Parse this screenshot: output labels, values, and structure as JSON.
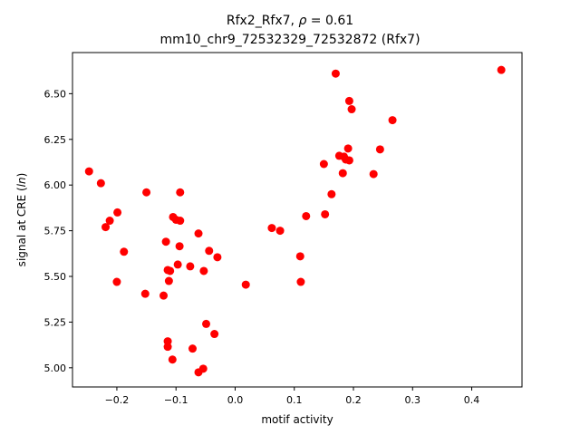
{
  "chart_data": {
    "type": "scatter",
    "title_line1": "Rfx2_Rfx7, ρ = 0.61",
    "title_line2": "mm10_chr9_72532329_72532872 (Rfx7)",
    "xlabel": "motif activity",
    "ylabel": "signal at CRE (ln)",
    "xlim": [
      -0.275,
      0.485
    ],
    "ylim": [
      4.895,
      6.725
    ],
    "xticks": [
      -0.2,
      -0.1,
      0.0,
      0.1,
      0.2,
      0.3,
      0.4
    ],
    "xtick_labels": [
      "−0.2",
      "−0.1",
      "0.0",
      "0.1",
      "0.2",
      "0.3",
      "0.4"
    ],
    "yticks": [
      5.0,
      5.25,
      5.5,
      5.75,
      6.0,
      6.25,
      6.5
    ],
    "ytick_labels": [
      "5.00",
      "5.25",
      "5.50",
      "5.75",
      "6.00",
      "6.25",
      "6.50"
    ],
    "grid": false,
    "marker_color": "#ff0000",
    "points": [
      {
        "x": -0.247,
        "y": 6.075
      },
      {
        "x": -0.227,
        "y": 6.01
      },
      {
        "x": -0.219,
        "y": 5.77
      },
      {
        "x": -0.212,
        "y": 5.805
      },
      {
        "x": -0.199,
        "y": 5.85
      },
      {
        "x": -0.2,
        "y": 5.47
      },
      {
        "x": -0.188,
        "y": 5.635
      },
      {
        "x": -0.15,
        "y": 5.96
      },
      {
        "x": -0.152,
        "y": 5.405
      },
      {
        "x": -0.121,
        "y": 5.395
      },
      {
        "x": -0.117,
        "y": 5.69
      },
      {
        "x": -0.114,
        "y": 5.535
      },
      {
        "x": -0.11,
        "y": 5.53
      },
      {
        "x": -0.112,
        "y": 5.475
      },
      {
        "x": -0.105,
        "y": 5.825
      },
      {
        "x": -0.1,
        "y": 5.81
      },
      {
        "x": -0.093,
        "y": 5.805
      },
      {
        "x": -0.093,
        "y": 5.96
      },
      {
        "x": -0.094,
        "y": 5.665
      },
      {
        "x": -0.097,
        "y": 5.565
      },
      {
        "x": -0.076,
        "y": 5.555
      },
      {
        "x": -0.062,
        "y": 5.735
      },
      {
        "x": -0.044,
        "y": 5.64
      },
      {
        "x": -0.053,
        "y": 5.53
      },
      {
        "x": -0.03,
        "y": 5.605
      },
      {
        "x": -0.114,
        "y": 5.145
      },
      {
        "x": -0.114,
        "y": 5.115
      },
      {
        "x": -0.106,
        "y": 5.045
      },
      {
        "x": -0.049,
        "y": 5.24
      },
      {
        "x": -0.035,
        "y": 5.185
      },
      {
        "x": -0.072,
        "y": 5.105
      },
      {
        "x": -0.054,
        "y": 4.995
      },
      {
        "x": -0.062,
        "y": 4.975
      },
      {
        "x": 0.018,
        "y": 5.455
      },
      {
        "x": 0.062,
        "y": 5.765
      },
      {
        "x": 0.076,
        "y": 5.75
      },
      {
        "x": 0.11,
        "y": 5.61
      },
      {
        "x": 0.111,
        "y": 5.47
      },
      {
        "x": 0.12,
        "y": 5.83
      },
      {
        "x": 0.152,
        "y": 5.84
      },
      {
        "x": 0.15,
        "y": 6.115
      },
      {
        "x": 0.163,
        "y": 5.95
      },
      {
        "x": 0.17,
        "y": 6.61
      },
      {
        "x": 0.176,
        "y": 6.16
      },
      {
        "x": 0.182,
        "y": 6.065
      },
      {
        "x": 0.184,
        "y": 6.155
      },
      {
        "x": 0.187,
        "y": 6.14
      },
      {
        "x": 0.193,
        "y": 6.135
      },
      {
        "x": 0.191,
        "y": 6.2
      },
      {
        "x": 0.193,
        "y": 6.46
      },
      {
        "x": 0.197,
        "y": 6.415
      },
      {
        "x": 0.234,
        "y": 6.06
      },
      {
        "x": 0.245,
        "y": 6.195
      },
      {
        "x": 0.266,
        "y": 6.355
      },
      {
        "x": 0.45,
        "y": 6.63
      }
    ]
  }
}
